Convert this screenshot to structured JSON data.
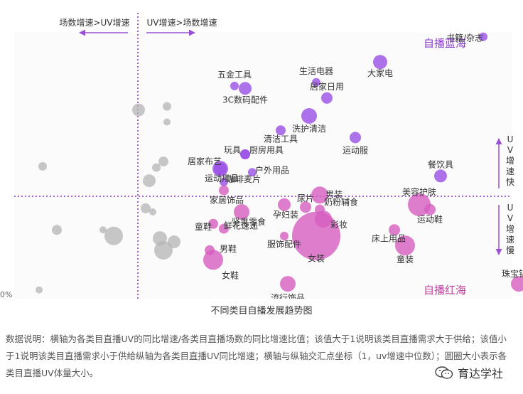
{
  "chart_data": {
    "type": "scatter",
    "title": "不同类目自播发展趋势图",
    "ytick_label": "0%",
    "grid": false,
    "legend": "none",
    "quadrant_labels": {
      "top_right": "自播蓝海",
      "bottom_right": "自播红海",
      "top_left_arrow": "场数增速>UV增速",
      "top_right_arrow": "UV增速>场数增速",
      "right_upper_arrow": "UV增速快",
      "right_lower_arrow": "UV增速慢"
    },
    "colors": {
      "blue_sea": "#9a50e6",
      "red_sea": "#d65ec0",
      "neutral": "#b4b4b4",
      "divider": "#9a4fd6",
      "quadrant_label_top": "#8a3fd0",
      "quadrant_label_bottom": "#c0449e"
    },
    "points": [
      {
        "label": "书籍/杂志",
        "x": 1.82,
        "y": 2.16,
        "size": 6,
        "group": "blue"
      },
      {
        "label": "大家电",
        "x": 1.53,
        "y": 1.95,
        "size": 10,
        "group": "blue"
      },
      {
        "label": "五金工具",
        "x": 1.12,
        "y": 1.75,
        "size": 6,
        "group": "blue"
      },
      {
        "label": "生活电器",
        "x": 1.35,
        "y": 1.78,
        "size": 6,
        "group": "blue"
      },
      {
        "label": "3C数码配件",
        "x": 1.15,
        "y": 1.73,
        "size": 9,
        "group": "blue"
      },
      {
        "label": "居家日用",
        "x": 1.38,
        "y": 1.65,
        "size": 8,
        "group": "blue"
      },
      {
        "label": "洗护清洁",
        "x": 1.33,
        "y": 1.5,
        "size": 11,
        "group": "blue"
      },
      {
        "label": "清洁工具",
        "x": 1.25,
        "y": 1.38,
        "size": 7,
        "group": "blue"
      },
      {
        "label": "运动服",
        "x": 1.46,
        "y": 1.32,
        "size": 8,
        "group": "blue"
      },
      {
        "label": "玩具",
        "x": 1.15,
        "y": 1.18,
        "size": 7,
        "group": "blue"
      },
      {
        "label": "厨房用具",
        "x": 1.15,
        "y": 1.18,
        "size": 7,
        "group": "blue"
      },
      {
        "label": "居家布艺",
        "x": 1.08,
        "y": 1.06,
        "size": 11,
        "group": "blue"
      },
      {
        "label": "户外用品",
        "x": 1.17,
        "y": 1.03,
        "size": 6,
        "group": "blue"
      },
      {
        "label": "运动用品",
        "x": 1.08,
        "y": 1.06,
        "size": 9,
        "group": "blue"
      },
      {
        "label": "咖啡麦片",
        "x": 1.09,
        "y": 0.95,
        "size": 6,
        "group": "blue"
      },
      {
        "label": "餐饮具",
        "x": 1.7,
        "y": 1.0,
        "size": 9,
        "group": "blue"
      },
      {
        "label": "家居饰品",
        "x": 1.09,
        "y": 0.88,
        "size": 7,
        "group": "red"
      },
      {
        "label": "男装",
        "x": 1.36,
        "y": 0.84,
        "size": 12,
        "group": "red"
      },
      {
        "label": "美容护肤",
        "x": 1.64,
        "y": 0.76,
        "size": 16,
        "group": "red"
      },
      {
        "label": "尿片",
        "x": 1.32,
        "y": 0.74,
        "size": 8,
        "group": "red"
      },
      {
        "label": "奶粉辅食",
        "x": 1.36,
        "y": 0.72,
        "size": 7,
        "group": "red"
      },
      {
        "label": "孕妇装",
        "x": 1.26,
        "y": 0.76,
        "size": 9,
        "group": "red"
      },
      {
        "label": "运动鞋",
        "x": 1.67,
        "y": 0.72,
        "size": 8,
        "group": "red"
      },
      {
        "label": "坚果零食",
        "x": 1.14,
        "y": 0.7,
        "size": 11,
        "group": "red"
      },
      {
        "label": "彩妆",
        "x": 1.37,
        "y": 0.64,
        "size": 12,
        "group": "red"
      },
      {
        "label": "童鞋",
        "x": 1.06,
        "y": 0.6,
        "size": 7,
        "group": "red"
      },
      {
        "label": "床上用品",
        "x": 1.57,
        "y": 0.55,
        "size": 8,
        "group": "red"
      },
      {
        "label": "女装",
        "x": 1.35,
        "y": 0.5,
        "size": 34,
        "group": "red"
      },
      {
        "label": "鲜花速递",
        "x": 1.09,
        "y": 0.56,
        "size": 7,
        "group": "red"
      },
      {
        "label": "服饰配件",
        "x": 1.26,
        "y": 0.5,
        "size": 6,
        "group": "red"
      },
      {
        "label": "童装",
        "x": 1.6,
        "y": 0.42,
        "size": 14,
        "group": "red"
      },
      {
        "label": "男鞋",
        "x": 1.05,
        "y": 0.38,
        "size": 7,
        "group": "red"
      },
      {
        "label": "女鞋",
        "x": 1.06,
        "y": 0.3,
        "size": 14,
        "group": "red"
      },
      {
        "label": "流行饰品",
        "x": 1.27,
        "y": 0.1,
        "size": 11,
        "group": "red"
      },
      {
        "label": "珠宝钻石",
        "x": 1.92,
        "y": 0.1,
        "size": 11,
        "group": "red"
      },
      {
        "label": "",
        "x": 0.85,
        "y": 1.55,
        "size": 9,
        "group": "grey"
      },
      {
        "label": "",
        "x": 0.93,
        "y": 1.58,
        "size": 6,
        "group": "grey"
      },
      {
        "label": "",
        "x": 0.93,
        "y": 1.45,
        "size": 5,
        "group": "grey"
      },
      {
        "label": "",
        "x": 0.58,
        "y": 1.08,
        "size": 6,
        "group": "grey"
      },
      {
        "label": "",
        "x": 0.92,
        "y": 1.12,
        "size": 7,
        "group": "grey"
      },
      {
        "label": "",
        "x": 0.9,
        "y": 1.07,
        "size": 6,
        "group": "grey"
      },
      {
        "label": "",
        "x": 0.88,
        "y": 0.96,
        "size": 9,
        "group": "grey"
      },
      {
        "label": "",
        "x": 0.87,
        "y": 0.73,
        "size": 7,
        "group": "grey"
      },
      {
        "label": "",
        "x": 0.89,
        "y": 0.7,
        "size": 5,
        "group": "grey"
      },
      {
        "label": "",
        "x": 0.62,
        "y": 0.55,
        "size": 7,
        "group": "grey"
      },
      {
        "label": "",
        "x": 0.75,
        "y": 0.55,
        "size": 5,
        "group": "grey"
      },
      {
        "label": "",
        "x": 0.78,
        "y": 0.5,
        "size": 13,
        "group": "grey"
      },
      {
        "label": "",
        "x": 0.91,
        "y": 0.48,
        "size": 10,
        "group": "grey"
      },
      {
        "label": "",
        "x": 0.92,
        "y": 0.38,
        "size": 13,
        "group": "grey"
      },
      {
        "label": "",
        "x": 0.95,
        "y": 0.45,
        "size": 9,
        "group": "grey"
      },
      {
        "label": "",
        "x": 0.57,
        "y": 0.05,
        "size": 5,
        "group": "grey"
      }
    ]
  },
  "caption": "数据说明：横轴为各类目直播UV的同比增速/各类目直播场数的同比增速比值；该值大于1说明该类目直播需求大于供给；该值小于1说明该类目直播需求小于供给纵轴为各类目直播UV同比增速；横轴与纵轴交汇点坐标（1，uv增速中位数）；圆圈大小表示各类目直播UV体量大小。",
  "brand": {
    "name": "育达学社",
    "icon": "wechat-icon"
  }
}
